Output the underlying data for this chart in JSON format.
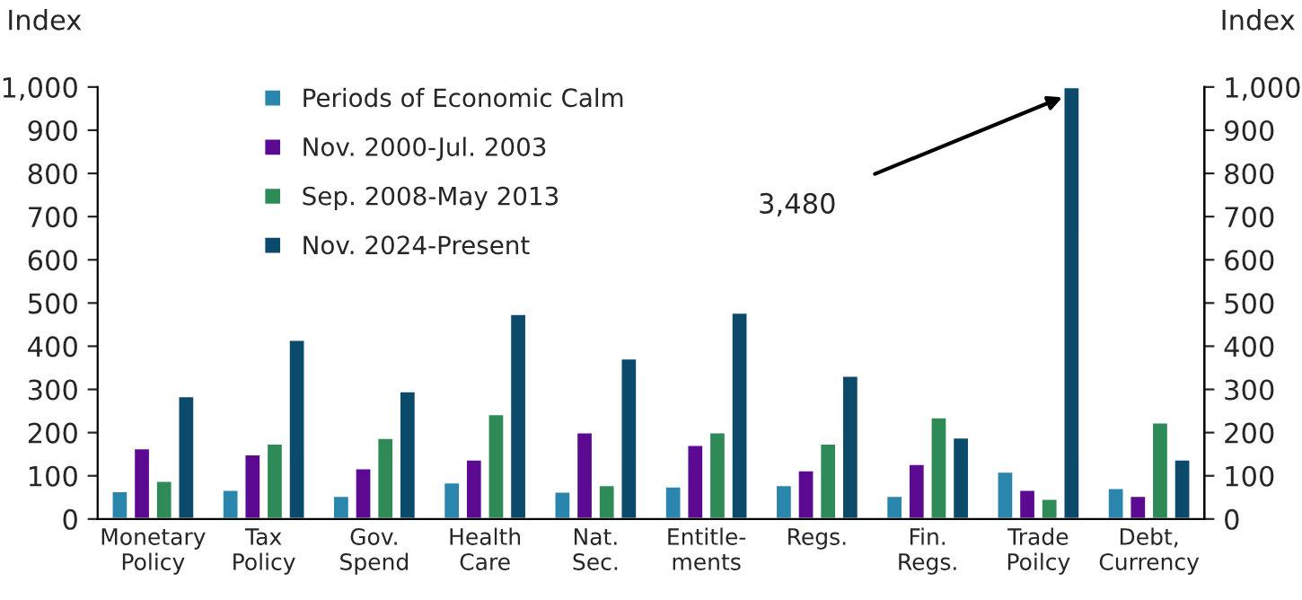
{
  "chart_data": {
    "type": "bar",
    "ylabel": "Index",
    "y2label": "Index",
    "categories": [
      "Monetary Policy",
      "Tax Policy",
      "Gov. Spend",
      "Health Care",
      "Nat. Sec.",
      "Entitle- ments",
      "Regs.",
      "Fin. Regs.",
      "Trade Poilcy",
      "Debt, Currency"
    ],
    "series": [
      {
        "name": "Periods of Economic Calm",
        "color": "#2a86ac",
        "values": [
          65,
          68,
          54,
          85,
          64,
          76,
          79,
          54,
          110,
          72
        ]
      },
      {
        "name": "Nov. 2000-Jul. 2003",
        "color": "#5b0a91",
        "values": [
          164,
          150,
          118,
          138,
          201,
          172,
          113,
          128,
          68,
          54
        ]
      },
      {
        "name": "Sep. 2008-May 2013",
        "color": "#2e8b57",
        "values": [
          89,
          175,
          188,
          243,
          79,
          201,
          175,
          236,
          47,
          224
        ]
      },
      {
        "name": "Nov. 2024-Present",
        "color": "#0b4a6b",
        "values": [
          285,
          415,
          296,
          475,
          372,
          478,
          332,
          189,
          1000,
          138
        ]
      }
    ],
    "ylim": [
      0,
      1000
    ],
    "yticks": [
      0,
      100,
      200,
      300,
      400,
      500,
      600,
      700,
      800,
      900,
      {
        "value": 1000,
        "label": "1,000"
      }
    ],
    "y2lim": [
      0,
      1000
    ],
    "y2ticks": [
      0,
      100,
      200,
      300,
      400,
      500,
      600,
      700,
      800,
      900,
      {
        "value": 1000,
        "label": "1,000"
      }
    ],
    "annotations": [
      "3,480"
    ],
    "legend": "top left",
    "grid": false
  }
}
